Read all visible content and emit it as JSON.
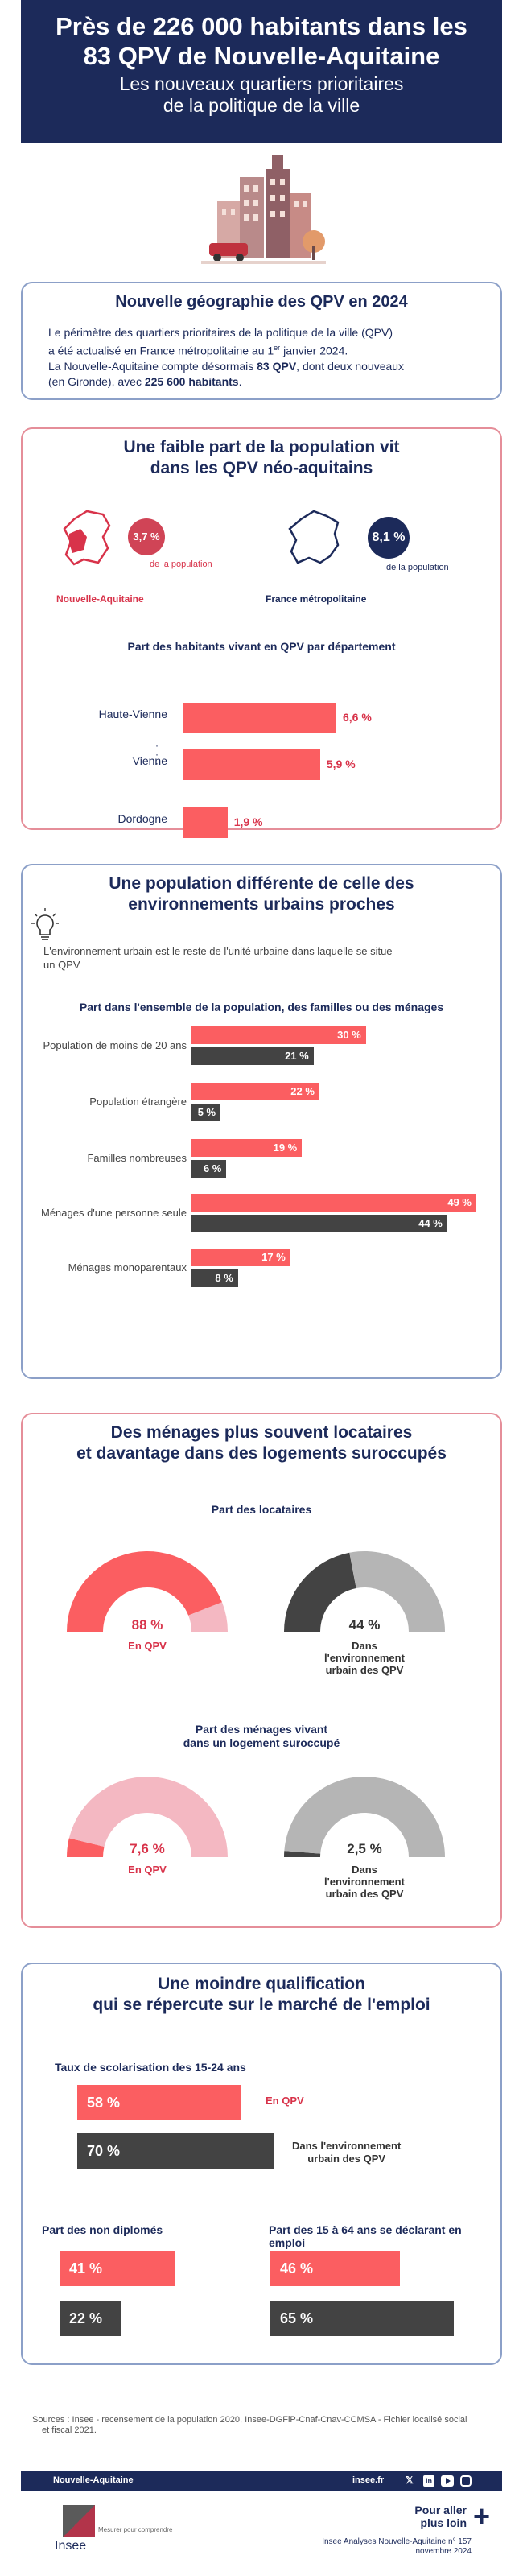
{
  "header": {
    "title_line1": "Près de 226 000 habitants dans les",
    "title_line2": "83 QPV de Nouvelle-Aquitaine",
    "subtitle_line1": "Les nouveaux quartiers prioritaires",
    "subtitle_line2": "de la politique de la ville"
  },
  "geo": {
    "title": "Nouvelle géographie des QPV en 2024",
    "p1_a": "Le périmètre des quartiers prioritaires de la politique de la ville (QPV)",
    "p1_b": "a été actualisé en France métropolitaine au 1",
    "p1_sup": "er",
    "p1_c": " janvier 2024.",
    "p2_a": "La Nouvelle-Aquitaine compte désormais ",
    "p2_b": "83 QPV",
    "p2_c": ", dont deux nouveaux",
    "p3_a": "(en Gironde), avec ",
    "p3_b": "225 600 habitants",
    "p3_c": "."
  },
  "share": {
    "title_line1": "Une faible part de la population vit",
    "title_line2": "dans les QPV néo-aquitains",
    "na_value": "3,7 %",
    "na_caption": "de la population",
    "na_label": "Nouvelle-Aquitaine",
    "fr_value": "8,1 %",
    "fr_caption": "de la population",
    "fr_label": "France métropolitaine",
    "dept_title": "Part des habitants vivant en QPV par département",
    "depts": [
      {
        "name": "Haute-Vienne",
        "value": 6.6,
        "label": "6,6 %"
      },
      {
        "name": "Vienne",
        "value": 5.9,
        "label": "5,9 %"
      },
      {
        "name": "Dordogne",
        "value": 1.9,
        "label": "1,9 %"
      }
    ]
  },
  "pop": {
    "title_line1": "Une population différente de celle des",
    "title_line2": "environnements urbains proches",
    "def_term": "L'environnement urbain",
    "def_rest_a": " est le reste de l'unité urbaine dans laquelle se situe",
    "def_rest_b": "un QPV",
    "chart_title": "Part dans l'ensemble de la population, des familles ou des ménages",
    "rows": [
      {
        "label": "Population de moins de 20 ans",
        "qpv": 30,
        "qpv_label": "30 %",
        "env": 21,
        "env_label": "21 %"
      },
      {
        "label": "Population étrangère",
        "qpv": 22,
        "qpv_label": "22 %",
        "env": 5,
        "env_label": "5 %"
      },
      {
        "label": "Familles nombreuses",
        "qpv": 19,
        "qpv_label": "19 %",
        "env": 6,
        "env_label": "6 %"
      },
      {
        "label": "Ménages d'une personne seule",
        "qpv": 49,
        "qpv_label": "49 %",
        "env": 44,
        "env_label": "44 %"
      },
      {
        "label": "Ménages monoparentaux",
        "qpv": 17,
        "qpv_label": "17 %",
        "env": 8,
        "env_label": "8 %"
      }
    ]
  },
  "housing": {
    "title_line1": "Des ménages plus souvent locataires",
    "title_line2": "et davantage dans des logements suroccupés",
    "renters_title": "Part des locataires",
    "renters_qpv": 88,
    "renters_qpv_label": "88 %",
    "renters_qpv_caption": "En QPV",
    "renters_env": 44,
    "renters_env_label": "44 %",
    "env_caption_1": "Dans",
    "env_caption_2": "l'environnement",
    "env_caption_3": "urbain des QPV",
    "over_title_line1": "Part des ménages vivant",
    "over_title_line2": "dans un logement suroccupé",
    "over_qpv": 7.6,
    "over_qpv_label": "7,6 %",
    "over_qpv_caption": "En QPV",
    "over_env": 2.5,
    "over_env_label": "2,5 %"
  },
  "qualif": {
    "title_line1": "Une moindre qualification",
    "title_line2": "qui se répercute sur le marché de l'emploi",
    "school_title": "Taux de scolarisation des 15-24 ans",
    "school_qpv": 58,
    "school_qpv_label": "58 %",
    "school_qpv_caption": "En QPV",
    "school_env": 70,
    "school_env_label": "70 %",
    "school_env_caption_1": "Dans l'environnement",
    "school_env_caption_2": "urbain des QPV",
    "nodip_title": "Part des non diplomés",
    "nodip_qpv": 41,
    "nodip_qpv_label": "41 %",
    "nodip_env": 22,
    "nodip_env_label": "22 %",
    "emp_title": "Part des 15 à 64 ans se déclarant en emploi",
    "emp_qpv": 46,
    "emp_qpv_label": "46 %",
    "emp_env": 65,
    "emp_env_label": "65 %"
  },
  "sources_line1": "Sources : Insee - recensement de la population 2020,  Insee-DGFiP-Cnaf-Cnav-CCMSA - Fichier localisé social",
  "sources_line2": "et fiscal 2021.",
  "footer": {
    "region": "Nouvelle-Aquitaine",
    "site": "insee.fr",
    "more_1": "Pour aller",
    "more_2": "plus loin",
    "pub_1": "Insee Analyses Nouvelle-Aquitaine n° 157",
    "pub_2": "novembre 2024",
    "logo_text": "Insee",
    "tagline_1": "Mesurer pour comprendre"
  },
  "colors": {
    "navy": "#1c2a5a",
    "red": "#fb5e61",
    "dark": "#434343",
    "pink": "#f4b8c2",
    "grey": "#b5b5b5"
  }
}
